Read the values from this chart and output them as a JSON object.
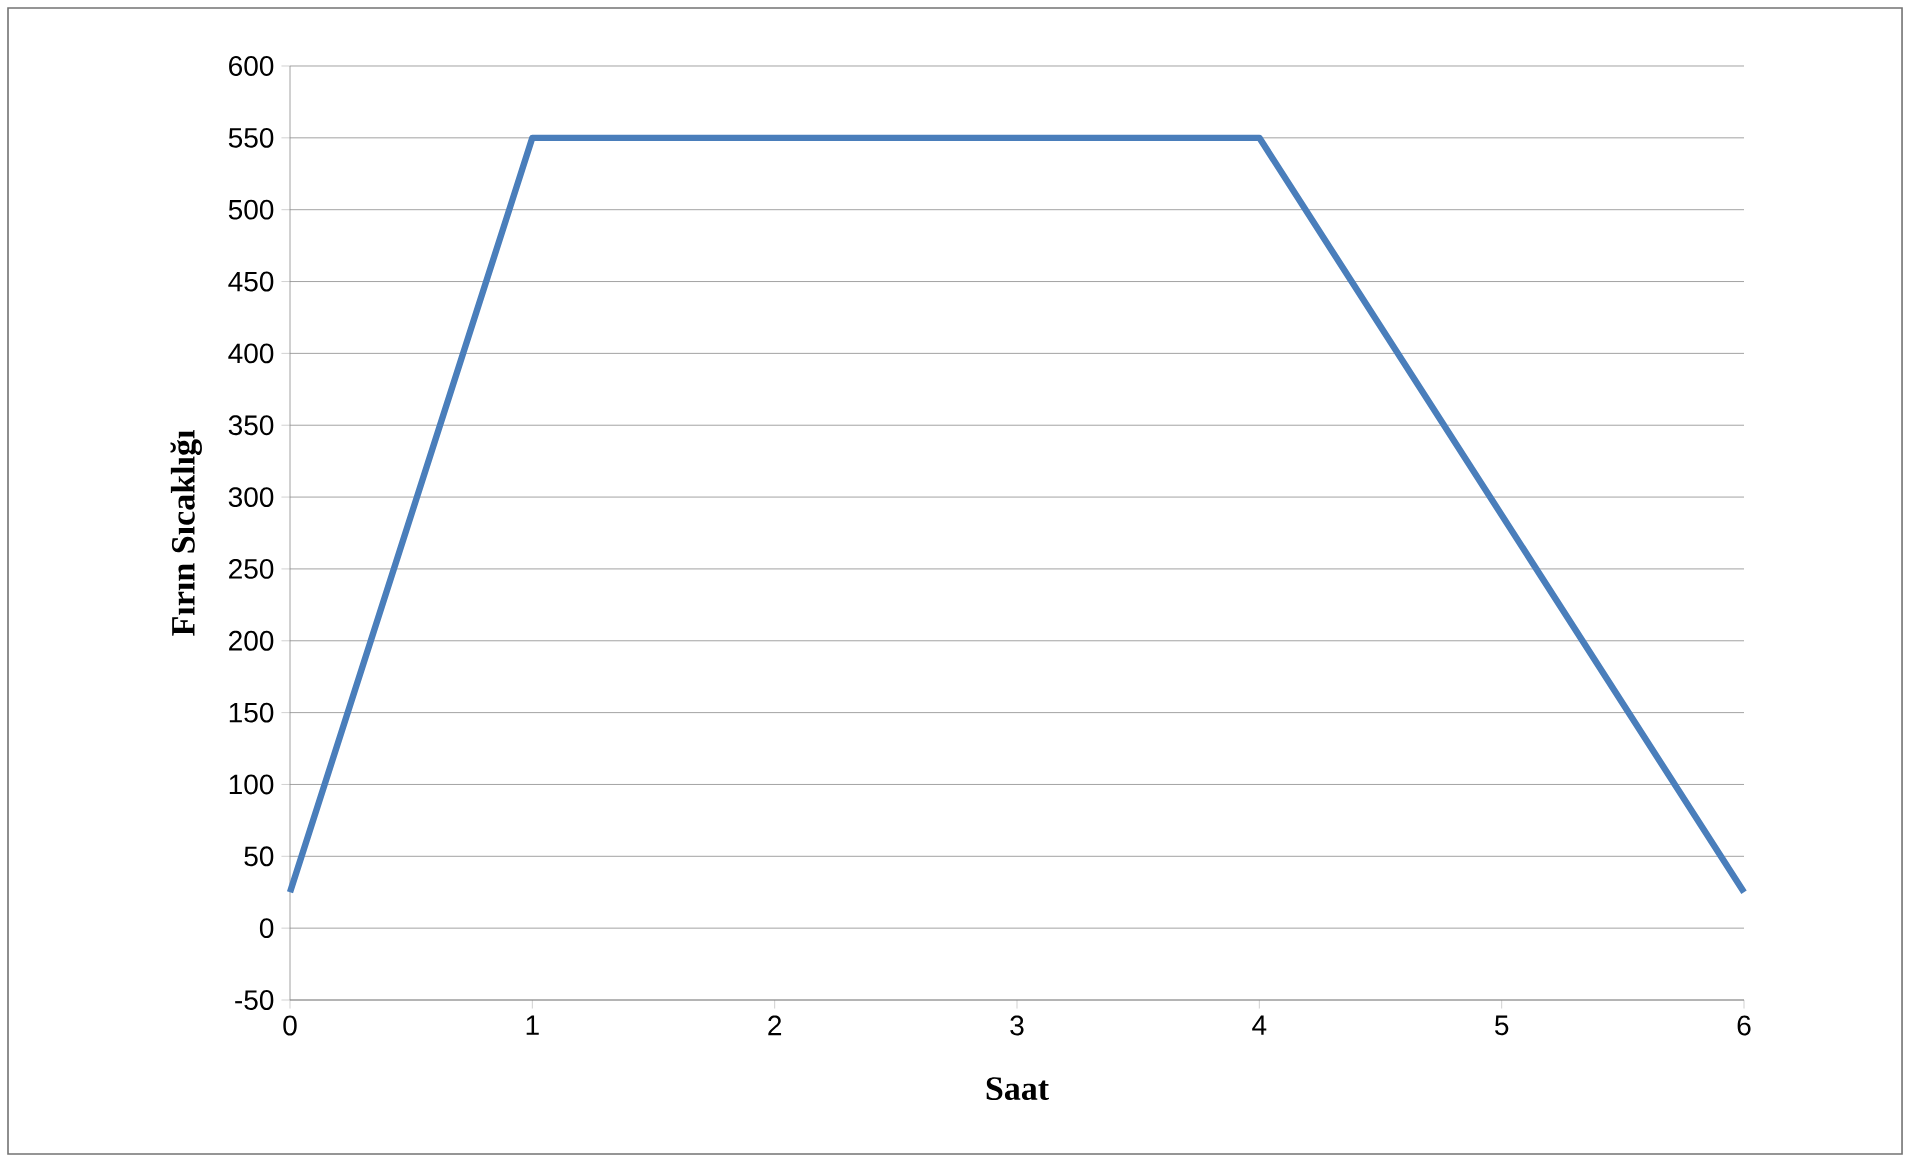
{
  "chart_data": {
    "type": "line",
    "xlabel": "Saat",
    "ylabel": "Fırın Sıcaklığı",
    "x": [
      0,
      1,
      4,
      6
    ],
    "series": [
      {
        "color": "#4a7ebb",
        "values": [
          25,
          550,
          550,
          25
        ]
      }
    ],
    "xlim": [
      0,
      6
    ],
    "xticks": [
      0,
      1,
      2,
      3,
      4,
      5,
      6
    ],
    "ylim": [
      -50,
      600
    ],
    "yticks": [
      -50,
      0,
      50,
      100,
      150,
      200,
      250,
      300,
      350,
      400,
      450,
      500,
      550,
      600
    ],
    "grid": "y"
  }
}
